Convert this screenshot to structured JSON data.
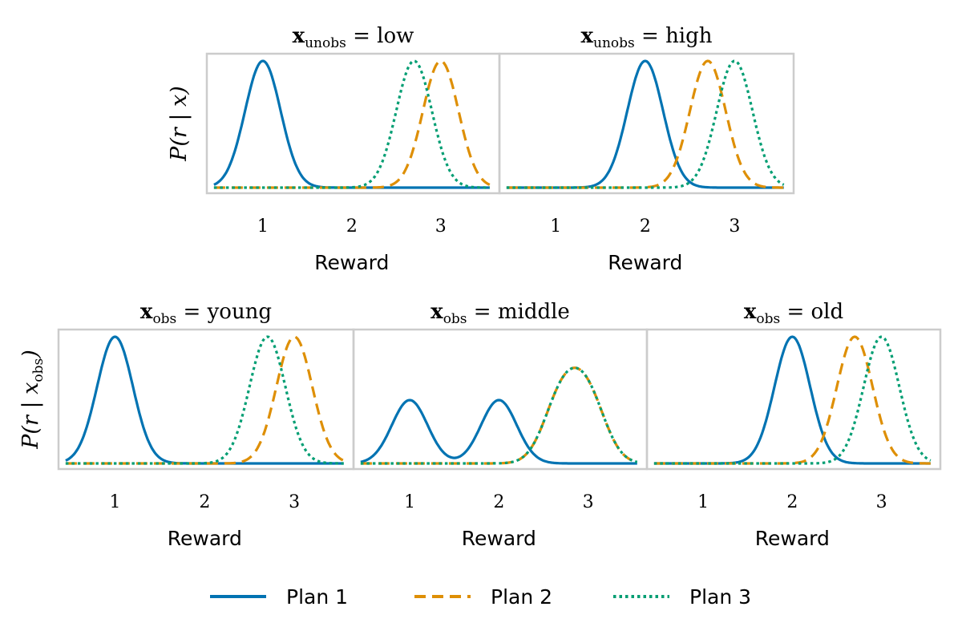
{
  "chart_data": [
    {
      "type": "line",
      "title": {
        "var": "x",
        "sub": "unobs",
        "value": "low"
      },
      "xlabel": "Reward",
      "ylabel": {
        "text": "P(r | x)",
        "sub": ""
      },
      "xticks": [
        1,
        2,
        3
      ],
      "xlim": [
        0.37,
        3.66
      ],
      "x_range": [
        0.45,
        3.55
      ],
      "series": [
        {
          "name": "Plan 1",
          "components": [
            {
              "mean": 1.0,
              "sd": 0.2,
              "weight": 1.0
            }
          ]
        },
        {
          "name": "Plan 2",
          "components": [
            {
              "mean": 3.0,
              "sd": 0.2,
              "weight": 1.0
            }
          ]
        },
        {
          "name": "Plan 3",
          "components": [
            {
              "mean": 2.7,
              "sd": 0.2,
              "weight": 1.0
            }
          ]
        }
      ]
    },
    {
      "type": "line",
      "title": {
        "var": "x",
        "sub": "unobs",
        "value": "high"
      },
      "xlabel": "Reward",
      "ylabel": null,
      "xticks": [
        1,
        2,
        3
      ],
      "xlim": [
        0.37,
        3.66
      ],
      "x_range": [
        0.45,
        3.55
      ],
      "series": [
        {
          "name": "Plan 1",
          "components": [
            {
              "mean": 2.0,
              "sd": 0.2,
              "weight": 1.0
            }
          ]
        },
        {
          "name": "Plan 2",
          "components": [
            {
              "mean": 2.7,
              "sd": 0.2,
              "weight": 1.0
            }
          ]
        },
        {
          "name": "Plan 3",
          "components": [
            {
              "mean": 3.0,
              "sd": 0.2,
              "weight": 1.0
            }
          ]
        }
      ]
    },
    {
      "type": "line",
      "title": {
        "var": "x",
        "sub": "obs",
        "value": "young"
      },
      "xlabel": "Reward",
      "ylabel": {
        "text": "P(r | x",
        "sub": "obs"
      },
      "xticks": [
        1,
        2,
        3
      ],
      "xlim": [
        0.37,
        3.66
      ],
      "x_range": [
        0.45,
        3.55
      ],
      "series": [
        {
          "name": "Plan 1",
          "components": [
            {
              "mean": 1.0,
              "sd": 0.2,
              "weight": 1.0
            }
          ]
        },
        {
          "name": "Plan 2",
          "components": [
            {
              "mean": 3.0,
              "sd": 0.2,
              "weight": 1.0
            }
          ]
        },
        {
          "name": "Plan 3",
          "components": [
            {
              "mean": 2.7,
              "sd": 0.2,
              "weight": 1.0
            }
          ]
        }
      ]
    },
    {
      "type": "line",
      "title": {
        "var": "x",
        "sub": "obs",
        "value": "middle"
      },
      "xlabel": "Reward",
      "ylabel": null,
      "xticks": [
        1,
        2,
        3
      ],
      "xlim": [
        0.37,
        3.66
      ],
      "x_range": [
        0.45,
        3.55
      ],
      "series": [
        {
          "name": "Plan 1",
          "components": [
            {
              "mean": 1.0,
              "sd": 0.2,
              "weight": 0.5
            },
            {
              "mean": 2.0,
              "sd": 0.2,
              "weight": 0.5
            }
          ]
        },
        {
          "name": "Plan 2",
          "components": [
            {
              "mean": 2.7,
              "sd": 0.2,
              "weight": 0.5
            },
            {
              "mean": 3.0,
              "sd": 0.2,
              "weight": 0.5
            }
          ]
        },
        {
          "name": "Plan 3",
          "components": [
            {
              "mean": 2.7,
              "sd": 0.2,
              "weight": 0.5
            },
            {
              "mean": 3.0,
              "sd": 0.2,
              "weight": 0.5
            }
          ]
        }
      ]
    },
    {
      "type": "line",
      "title": {
        "var": "x",
        "sub": "obs",
        "value": "old"
      },
      "xlabel": "Reward",
      "ylabel": null,
      "xticks": [
        1,
        2,
        3
      ],
      "xlim": [
        0.37,
        3.66
      ],
      "x_range": [
        0.45,
        3.55
      ],
      "series": [
        {
          "name": "Plan 1",
          "components": [
            {
              "mean": 2.0,
              "sd": 0.2,
              "weight": 1.0
            }
          ]
        },
        {
          "name": "Plan 2",
          "components": [
            {
              "mean": 2.7,
              "sd": 0.2,
              "weight": 1.0
            }
          ]
        },
        {
          "name": "Plan 3",
          "components": [
            {
              "mean": 3.0,
              "sd": 0.2,
              "weight": 1.0
            }
          ]
        }
      ]
    }
  ],
  "legend": {
    "placement": "bottom-center",
    "entries": [
      {
        "name": "Plan 1",
        "color": "#0173b2",
        "style": "solid"
      },
      {
        "name": "Plan 2",
        "color": "#de8f05",
        "style": "dashed"
      },
      {
        "name": "Plan 3",
        "color": "#029e73",
        "style": "dotted"
      }
    ]
  },
  "frame_color": "#cccccc"
}
